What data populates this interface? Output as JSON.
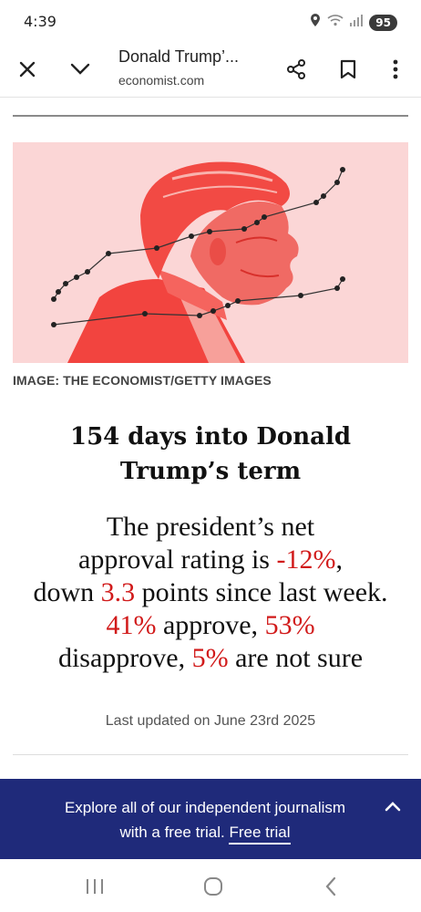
{
  "status": {
    "time": "4:39",
    "battery": "95"
  },
  "toolbar": {
    "title": "Donald Trump’...",
    "url": "economist.com"
  },
  "hero": {
    "caption": "IMAGE: THE ECONOMIST/GETTY IMAGES"
  },
  "article": {
    "headline_line1": "154 days into Donald",
    "headline_line2": "Trump’s term",
    "summary": {
      "p1": "The president’s net",
      "p2": "approval rating is ",
      "net": "-12%",
      "p3": ",",
      "p4": "down ",
      "change": "3.3",
      "p5": " points since last week.",
      "approve": "41%",
      "p6": " approve, ",
      "disapprove": "53%",
      "p7": "disapprove, ",
      "not_sure": "5%",
      "p8": " are not sure"
    },
    "updated": "Last updated on June 23rd 2025"
  },
  "banner": {
    "line1": "Explore all of our independent journalism",
    "line2": "with a free trial. ",
    "link": "Free trial"
  },
  "colors": {
    "accent_red": "#d11a1a",
    "banner_blue": "#1f2a7a",
    "hero_bg": "#fbd6d6"
  },
  "icons": {
    "close": "close-icon",
    "expand": "chevron-down-icon",
    "share": "share-icon",
    "bookmark": "bookmark-icon",
    "more": "more-vert-icon",
    "recents": "recents-icon",
    "home": "home-icon",
    "back": "back-icon"
  }
}
